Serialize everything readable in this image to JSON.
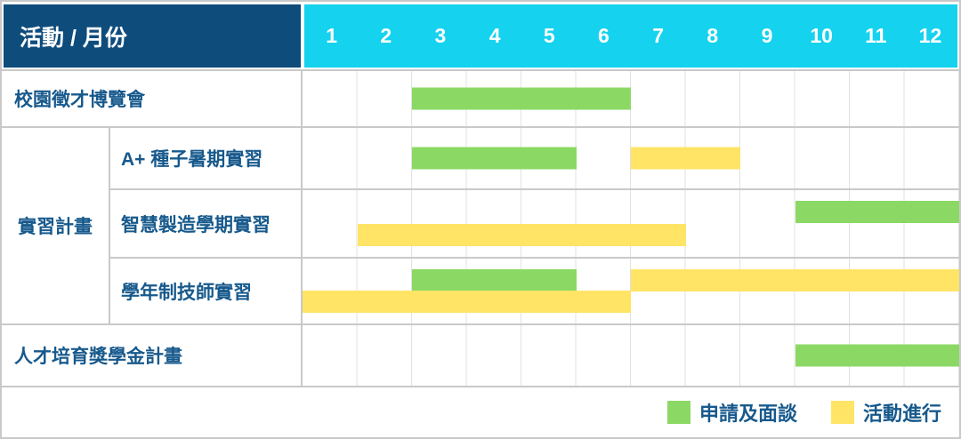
{
  "header": {
    "corner_label": "活動 / 月份",
    "months": [
      "1",
      "2",
      "3",
      "4",
      "5",
      "6",
      "7",
      "8",
      "9",
      "10",
      "11",
      "12"
    ]
  },
  "colors": {
    "header_bg": "#0e4c7c",
    "months_bg": "#15d2ef",
    "green": "#8bd964",
    "yellow": "#ffe466",
    "label_text": "#17598c",
    "grid": "#e2e2e2",
    "border": "#c9c9c9"
  },
  "legend": [
    {
      "color_key": "green",
      "label": "申請及面談"
    },
    {
      "color_key": "yellow",
      "label": "活動進行"
    }
  ],
  "group_label": "實習計畫",
  "chart_data": {
    "type": "gantt",
    "x_unit": "month",
    "x_range": [
      1,
      12
    ],
    "title": "活動 / 月份",
    "legend": {
      "green": "申請及面談",
      "yellow": "活動進行"
    },
    "rows": [
      {
        "id": "r1",
        "group": null,
        "label": "校園徵才博覽會",
        "lines": 1,
        "bars": [
          {
            "type": "green",
            "start": 3,
            "end": 6,
            "line": 1
          }
        ]
      },
      {
        "id": "r2",
        "group": "實習計畫",
        "label": "A+ 種子暑期實習",
        "lines": 1,
        "bars": [
          {
            "type": "green",
            "start": 3,
            "end": 5,
            "line": 1
          },
          {
            "type": "yellow",
            "start": 7,
            "end": 8,
            "line": 1
          }
        ]
      },
      {
        "id": "r3",
        "group": "實習計畫",
        "label": "智慧製造學期實習",
        "lines": 2,
        "bars": [
          {
            "type": "green",
            "start": 10,
            "end": 12,
            "line": 1
          },
          {
            "type": "yellow",
            "start": 2,
            "end": 7,
            "line": 2
          }
        ]
      },
      {
        "id": "r4",
        "group": "實習計畫",
        "label": "學年制技師實習",
        "lines": 2,
        "bars": [
          {
            "type": "green",
            "start": 3,
            "end": 5,
            "line": 1
          },
          {
            "type": "yellow",
            "start": 7,
            "end": 12,
            "line": 1
          },
          {
            "type": "yellow",
            "start": 1,
            "end": 6,
            "line": 2
          }
        ]
      },
      {
        "id": "r5",
        "group": null,
        "label": "人才培育獎學金計畫",
        "lines": 1,
        "bars": [
          {
            "type": "green",
            "start": 10,
            "end": 12,
            "line": 1
          }
        ]
      }
    ]
  }
}
